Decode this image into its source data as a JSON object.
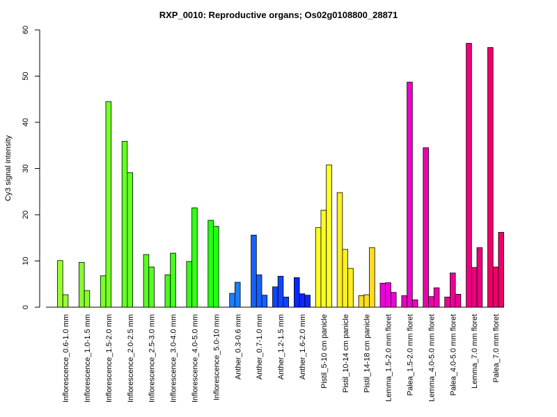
{
  "chart_data": {
    "type": "bar",
    "title": "RXP_0010: Reproductive organs; Os02g0108800_28871",
    "xlabel": "",
    "ylabel": "Cy3 signal intensity",
    "ylim": [
      0,
      60
    ],
    "yticks": [
      0,
      10,
      20,
      30,
      40,
      50,
      60
    ],
    "grid": false,
    "legend": "none",
    "categories": [
      {
        "label": "Inflorescence_0.6-1.0 mm",
        "color": "#99FF33",
        "values": [
          10.1,
          2.7
        ]
      },
      {
        "label": "Inflorescence_1.0-1.5 mm",
        "color": "#88FF2E",
        "values": [
          9.7,
          3.6
        ]
      },
      {
        "label": "Inflorescence_1.5-2.0 mm",
        "color": "#77FF29",
        "values": [
          6.8,
          44.5
        ]
      },
      {
        "label": "Inflorescence_2.0-2.5 mm",
        "color": "#66FF24",
        "values": [
          35.9,
          29.1
        ]
      },
      {
        "label": "Inflorescence_2.5-3.0 mm",
        "color": "#55FF1F",
        "values": [
          11.4,
          8.7
        ]
      },
      {
        "label": "Inflorescence_3.0-4.0 mm",
        "color": "#44FF1A",
        "values": [
          7.0,
          11.7
        ]
      },
      {
        "label": "Inflorescence_4.0-5.0 mm",
        "color": "#33FF15",
        "values": [
          9.9,
          21.5
        ]
      },
      {
        "label": "Inflorescence_5.0-10 mm",
        "color": "#22FF10",
        "values": [
          18.8,
          17.5
        ]
      },
      {
        "label": "Anther_0.3-0.6 mm",
        "color": "#1A7FFF",
        "values": [
          3.0,
          5.4
        ]
      },
      {
        "label": "Anther_0.7-1.0 mm",
        "color": "#1560FF",
        "values": [
          15.6,
          7.0,
          2.6
        ]
      },
      {
        "label": "Anther_1.2-1.5 mm",
        "color": "#1045FF",
        "values": [
          4.4,
          6.7,
          2.2
        ]
      },
      {
        "label": "Anther_1.6-2.0 mm",
        "color": "#0B28FF",
        "values": [
          6.4,
          2.9,
          2.6
        ]
      },
      {
        "label": "Pistil_5-10 cm panicle",
        "color": "#FFFF22",
        "values": [
          17.2,
          21.0,
          30.8
        ]
      },
      {
        "label": "Pistil_10-14 cm panicle",
        "color": "#FFEE22",
        "values": [
          24.8,
          12.5,
          8.4
        ]
      },
      {
        "label": "Pistil_14-18 cm panicle",
        "color": "#FFDD22",
        "values": [
          2.5,
          2.7,
          12.9
        ]
      },
      {
        "label": "Lemma_1.5-2.0 mm floret",
        "color": "#EE00DD",
        "values": [
          5.2,
          5.3,
          3.2
        ]
      },
      {
        "label": "Palea_1.5-2.0 mm floret",
        "color": "#EE00C8",
        "values": [
          2.5,
          48.7,
          1.6
        ]
      },
      {
        "label": "Lemma_4.0-5.0 mm floret",
        "color": "#EE00B0",
        "values": [
          34.5,
          2.3,
          4.2
        ]
      },
      {
        "label": "Palea_4.0-5.0 mm floret",
        "color": "#EE0098",
        "values": [
          2.2,
          7.4,
          2.8
        ]
      },
      {
        "label": "Lemma_7.0 mm floret",
        "color": "#EE0080",
        "values": [
          57.1,
          8.6,
          12.9
        ]
      },
      {
        "label": "Palea_7.0 mm floret",
        "color": "#EE0068",
        "values": [
          56.2,
          8.7,
          16.2
        ]
      }
    ]
  }
}
